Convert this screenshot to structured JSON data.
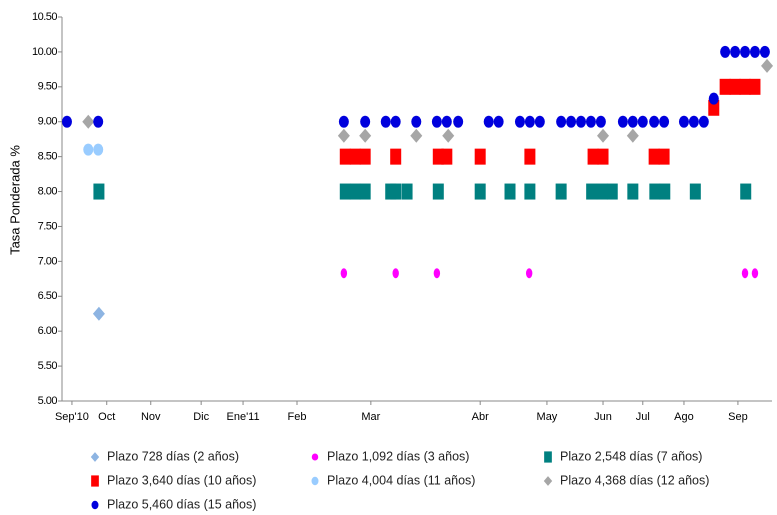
{
  "chart_data": {
    "type": "scatter",
    "y_label": "Tasa Ponderada  %",
    "xlim": [
      0,
      100
    ],
    "xticks": [
      {
        "value": 1.4,
        "label": "Sep'10"
      },
      {
        "value": 6.3,
        "label": "Oct"
      },
      {
        "value": 12.5,
        "label": "Nov"
      },
      {
        "value": 19.6,
        "label": "Dic"
      },
      {
        "value": 25.5,
        "label": "Ene'11"
      },
      {
        "value": 33.1,
        "label": "Feb"
      },
      {
        "value": 43.5,
        "label": "Mar"
      },
      {
        "value": 58.9,
        "label": "Abr"
      },
      {
        "value": 68.3,
        "label": "May"
      },
      {
        "value": 76.2,
        "label": "Jun"
      },
      {
        "value": 81.8,
        "label": "Jul"
      },
      {
        "value": 87.6,
        "label": "Ago"
      },
      {
        "value": 95.2,
        "label": "Sep"
      }
    ],
    "ylim": [
      5,
      10.5
    ],
    "yticks": [
      {
        "value": 5,
        "label": "5.00"
      },
      {
        "value": 5.5,
        "label": "5.50"
      },
      {
        "value": 6,
        "label": "6.00"
      },
      {
        "value": 6.5,
        "label": "6.50"
      },
      {
        "value": 7,
        "label": "7.00"
      },
      {
        "value": 7.5,
        "label": "7.50"
      },
      {
        "value": 8,
        "label": "8.00"
      },
      {
        "value": 8.5,
        "label": "8.50"
      },
      {
        "value": 9,
        "label": "9.00"
      },
      {
        "value": 9.5,
        "label": "9.50"
      },
      {
        "value": 10,
        "label": "10.00"
      },
      {
        "value": 10.5,
        "label": "10.50"
      }
    ],
    "grid": false,
    "series": [
      {
        "name": "Plazo 728 días (2 años)",
        "color": "#8db4e2",
        "marker": "diamond",
        "x": [
          5.2
        ],
        "values": [
          6.25
        ]
      },
      {
        "name": "Plazo 1,092 días (3 años)",
        "color": "#ff00ff",
        "marker": "small",
        "x": [
          39.7,
          47.0,
          52.8,
          65.8,
          96.2,
          97.6
        ],
        "values": [
          6.83,
          6.83,
          6.83,
          6.83,
          6.83,
          6.83
        ]
      },
      {
        "name": "Plazo 2,548 días (7 años)",
        "color": "#008080",
        "marker": "square",
        "x": [
          5.2,
          39.9,
          41.3,
          42.7,
          46.3,
          47.0,
          48.6,
          53.0,
          58.9,
          63.1,
          65.9,
          70.3,
          74.6,
          76.1,
          77.5,
          80.4,
          83.5,
          84.9,
          89.2,
          96.3
        ],
        "values": [
          8,
          8,
          8,
          8,
          8,
          8,
          8,
          8,
          8,
          8,
          8,
          8,
          8,
          8,
          8,
          8,
          8,
          8,
          8,
          8
        ]
      },
      {
        "name": "Plazo 3,640 días (10 años)",
        "color": "#ff0000",
        "marker": "square",
        "x": [
          39.9,
          41.3,
          42.7,
          47.0,
          53.0,
          54.2,
          58.9,
          65.9,
          74.8,
          76.2,
          83.4,
          84.8,
          91.8,
          93.4,
          94.8,
          96.2,
          97.6
        ],
        "values": [
          8.5,
          8.5,
          8.5,
          8.5,
          8.5,
          8.5,
          8.5,
          8.5,
          8.5,
          8.5,
          8.5,
          8.5,
          9.2,
          9.5,
          9.5,
          9.5,
          9.5
        ]
      },
      {
        "name": "Plazo 4,004 días (11 años)",
        "color": "#99ccff",
        "marker": "circle",
        "x": [
          3.7,
          5.1
        ],
        "values": [
          8.6,
          8.6
        ]
      },
      {
        "name": "Plazo 4,368 días (12 años)",
        "color": "#a6a6a6",
        "marker": "diamond",
        "x": [
          3.7,
          39.7,
          42.7,
          49.9,
          54.4,
          76.2,
          80.4,
          99.3
        ],
        "values": [
          9,
          8.8,
          8.8,
          8.8,
          8.8,
          8.8,
          8.8,
          9.8
        ]
      },
      {
        "name": "Plazo 5,460 días (15 años)",
        "color": "#0000dd",
        "marker": "circle",
        "x": [
          0.7,
          5.1,
          39.7,
          42.7,
          45.6,
          47.0,
          49.9,
          52.8,
          54.2,
          55.8,
          60.1,
          61.5,
          64.5,
          65.9,
          67.3,
          70.3,
          71.7,
          73.1,
          74.5,
          75.9,
          79.0,
          80.4,
          81.8,
          83.4,
          84.8,
          87.6,
          89.0,
          90.4,
          91.8,
          93.4,
          94.8,
          96.2,
          97.6,
          99.0
        ],
        "values": [
          9,
          9,
          9,
          9,
          9,
          9,
          9,
          9,
          9,
          9,
          9,
          9,
          9,
          9,
          9,
          9,
          9,
          9,
          9,
          9,
          9,
          9,
          9,
          9,
          9,
          9,
          9,
          9,
          9.33,
          10,
          10,
          10,
          10,
          10
        ]
      }
    ]
  }
}
